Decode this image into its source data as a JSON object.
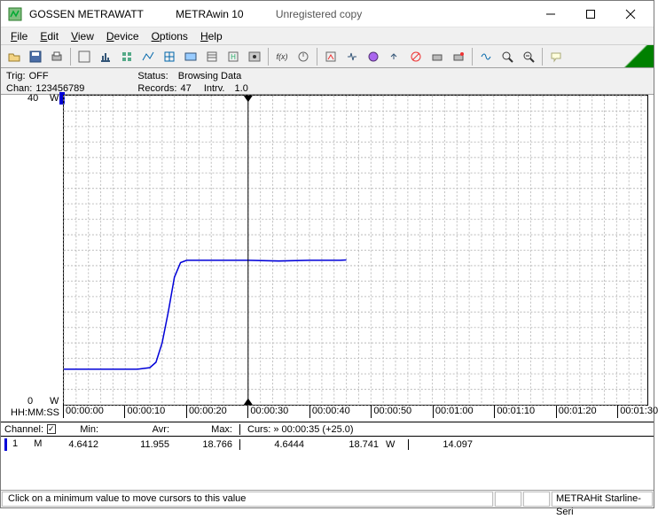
{
  "window": {
    "vendor": "GOSSEN METRAWATT",
    "product": "METRAwin 10",
    "license": "Unregistered copy"
  },
  "menu": {
    "file": "File",
    "edit": "Edit",
    "view": "View",
    "device": "Device",
    "options": "Options",
    "help": "Help"
  },
  "info": {
    "trig_label": "Trig:",
    "trig_value": "OFF",
    "chan_label": "Chan:",
    "chan_value": "123456789",
    "status_label": "Status:",
    "status_value": "Browsing Data",
    "records_label": "Records:",
    "records_value": "47",
    "intrv_label": "Intrv.",
    "intrv_value": "1.0"
  },
  "chart": {
    "y_max": 40,
    "y_min": 0,
    "y_unit": "W",
    "x_axis_label": "HH:MM:SS",
    "x_ticks": [
      "00:00:00",
      "00:00:10",
      "00:00:20",
      "00:00:30",
      "00:00:40",
      "00:00:50",
      "00:01:00",
      "00:01:10",
      "00:01:20",
      "00:01:30"
    ],
    "cursor_x_sec": 30,
    "x_visible_max_sec": 95,
    "grid_major_y_count": 4,
    "grid_minor_per_major": 5,
    "colors": {
      "grid": "#c0c0c0",
      "axis": "#000000",
      "series": "#0000d8",
      "background": "#ffffff"
    },
    "series": [
      {
        "t": 0,
        "v": 4.6
      },
      {
        "t": 12,
        "v": 4.6
      },
      {
        "t": 14,
        "v": 4.8
      },
      {
        "t": 15,
        "v": 5.5
      },
      {
        "t": 16,
        "v": 8.0
      },
      {
        "t": 17,
        "v": 12.0
      },
      {
        "t": 18,
        "v": 16.5
      },
      {
        "t": 19,
        "v": 18.4
      },
      {
        "t": 20,
        "v": 18.7
      },
      {
        "t": 25,
        "v": 18.7
      },
      {
        "t": 30,
        "v": 18.7
      },
      {
        "t": 35,
        "v": 18.6
      },
      {
        "t": 40,
        "v": 18.7
      },
      {
        "t": 45,
        "v": 18.7
      },
      {
        "t": 46,
        "v": 18.74
      }
    ]
  },
  "table": {
    "h_channel": "Channel:",
    "h_min": "Min:",
    "h_avr": "Avr:",
    "h_max": "Max:",
    "h_curs_prefix": "Curs: »",
    "h_curs_time": "00:00:35",
    "h_curs_delta": "(+25.0)",
    "row": {
      "idx": "1",
      "mode": "M",
      "min": "4.6412",
      "avr": "11.955",
      "max": "18.766",
      "cval": "4.6444",
      "cmax": "18.741",
      "unit": "W",
      "extra": "14.097"
    }
  },
  "status": {
    "hint": "Click on a minimum value to move cursors to this value",
    "device": "METRAHit Starline-Seri"
  }
}
